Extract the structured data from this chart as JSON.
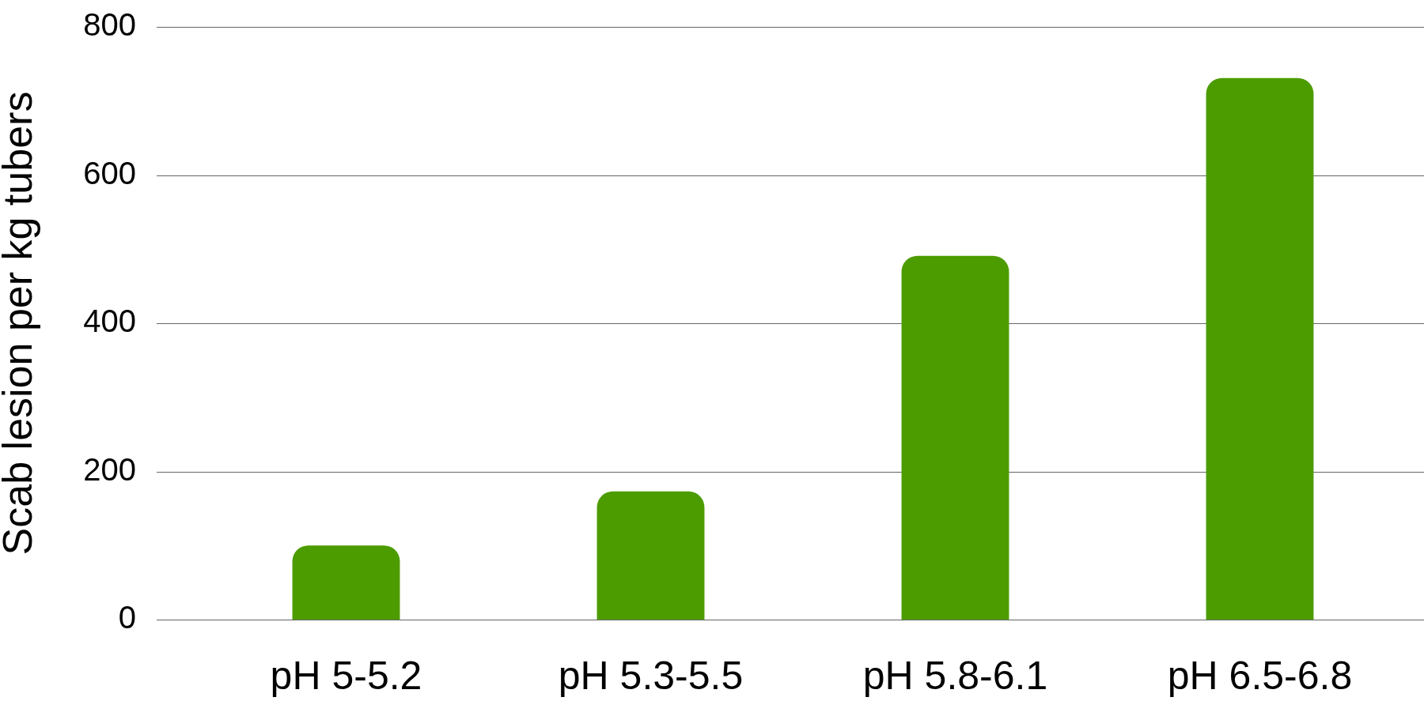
{
  "chart_data": {
    "type": "bar",
    "ylabel": "Scab lesion per kg tubers",
    "categories": [
      "pH 5-5.2",
      "pH 5.3-5.5",
      "pH 5.8-6.1",
      "pH 6.5-6.8"
    ],
    "values": [
      100,
      173,
      491,
      731
    ],
    "color": "#4c9c00",
    "ylim": [
      0,
      800
    ],
    "yticks": [
      0,
      200,
      400,
      600,
      800
    ],
    "grid": "y"
  }
}
